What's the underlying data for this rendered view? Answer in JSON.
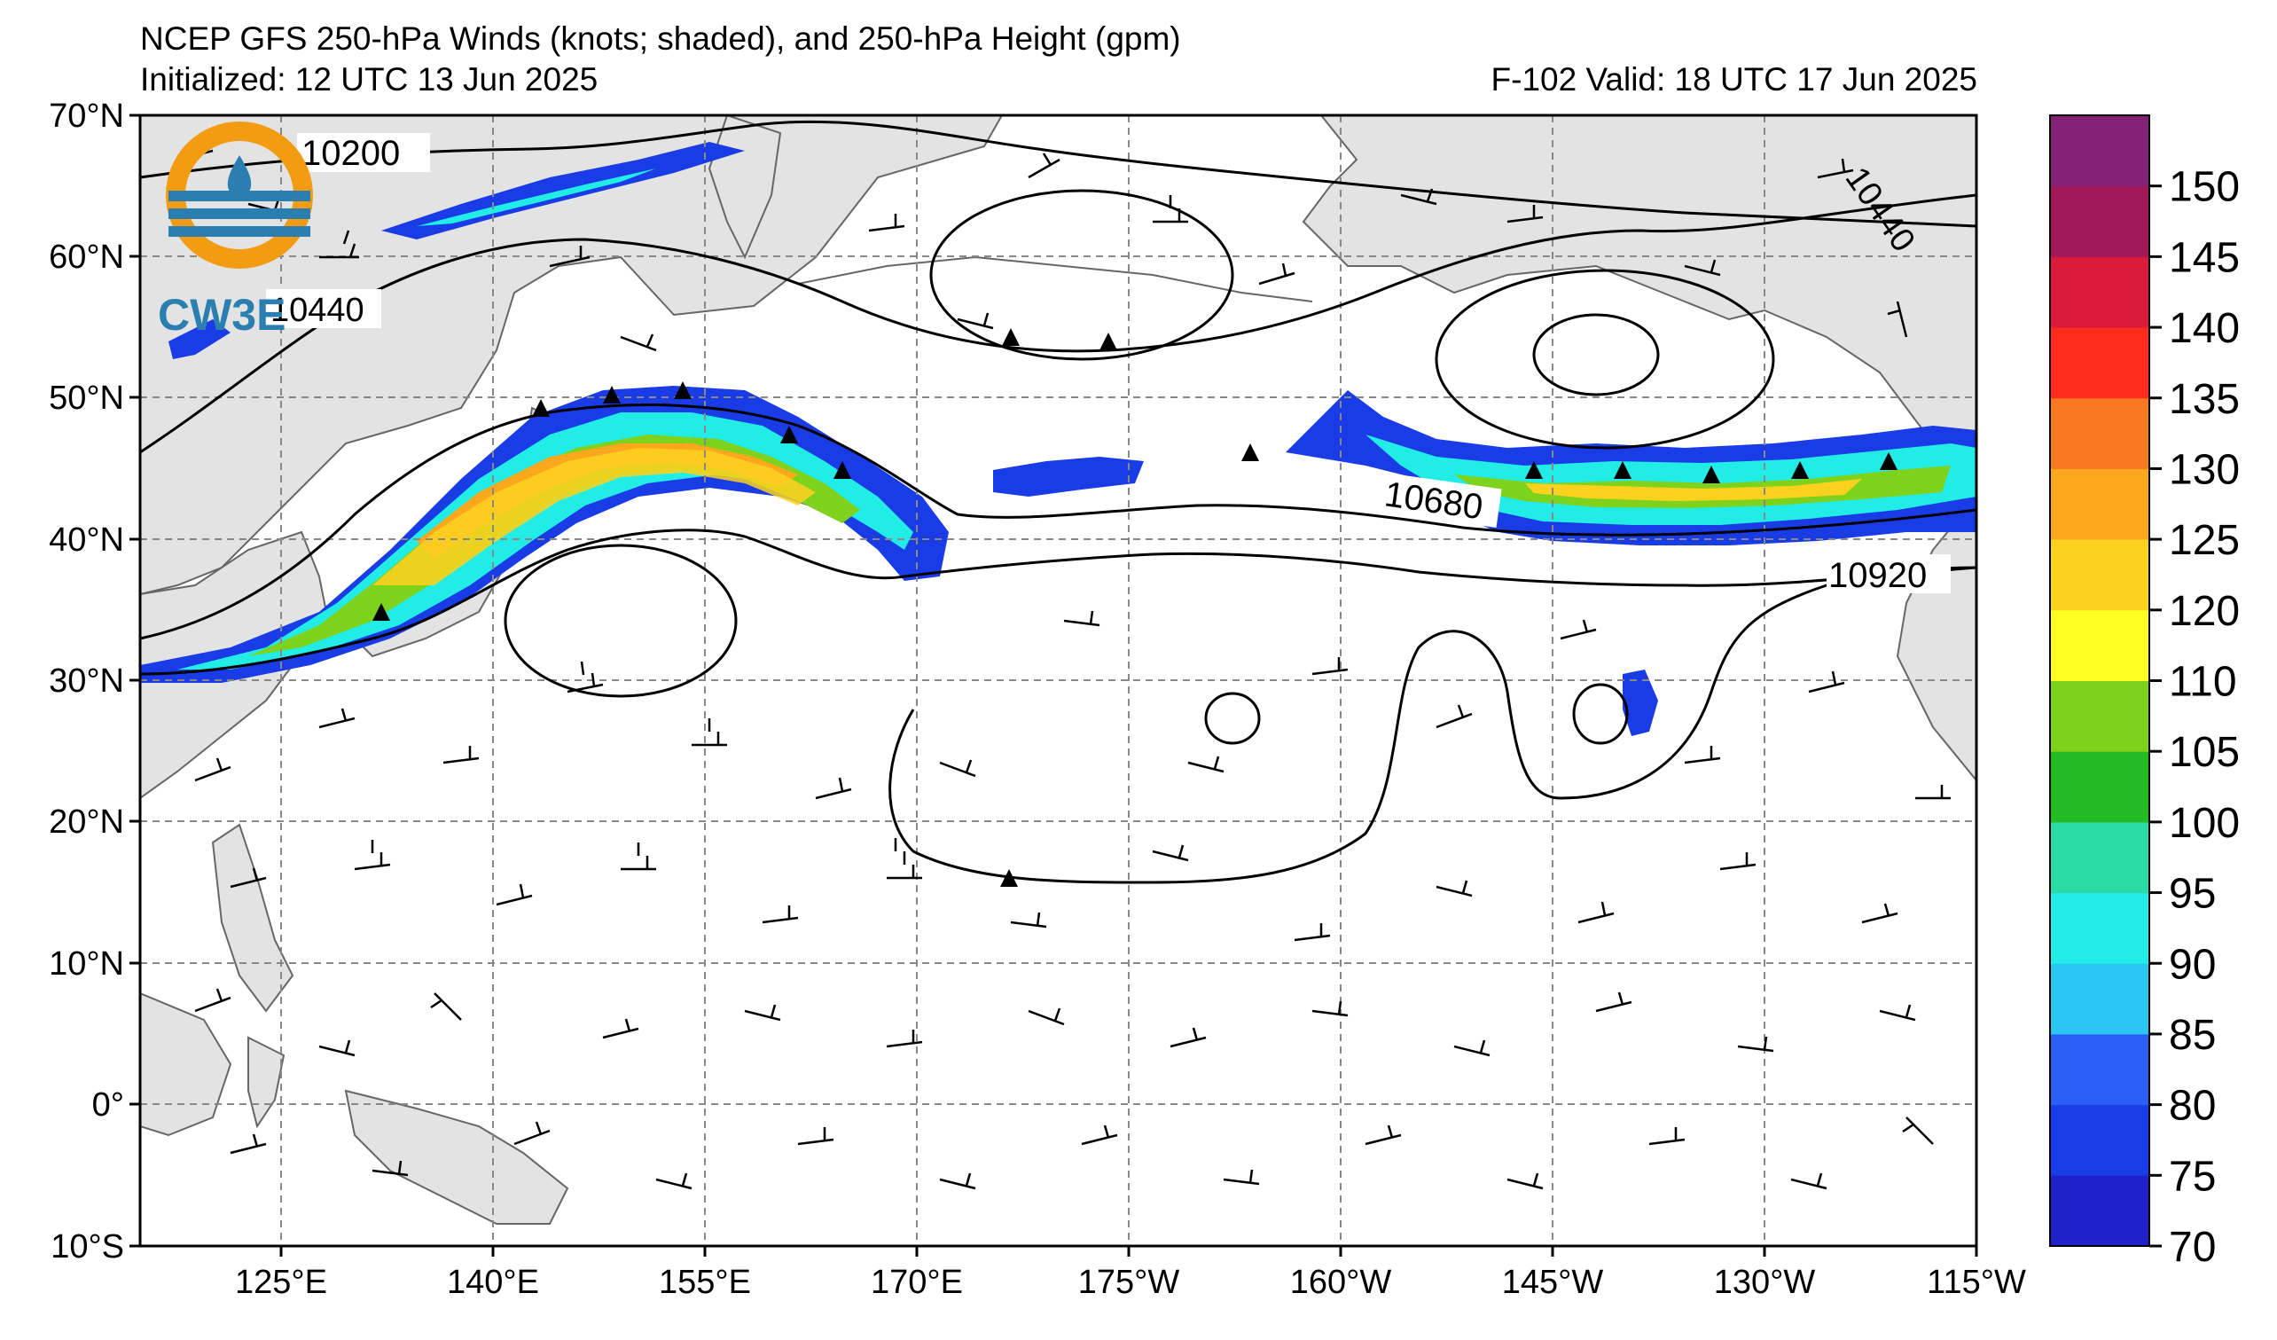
{
  "header": {
    "title": "NCEP GFS 250-hPa Winds (knots; shaded), and 250-hPa Height (gpm)",
    "initialized": "Initialized: 12 UTC 13 Jun 2025",
    "valid": "F-102  Valid: 18 UTC 17 Jun 2025"
  },
  "logo": {
    "text": "CW3E",
    "ring_colors": [
      "#f39c12",
      "#2a7fb0"
    ]
  },
  "axes": {
    "lat_labels": [
      "70°N",
      "60°N",
      "50°N",
      "40°N",
      "30°N",
      "20°N",
      "10°N",
      "0°",
      "10°S"
    ],
    "lon_labels": [
      "125°E",
      "140°E",
      "155°E",
      "170°E",
      "175°W",
      "160°W",
      "145°W",
      "130°W",
      "115°W"
    ]
  },
  "contour_labels": [
    {
      "text": "10200"
    },
    {
      "text": "10440"
    },
    {
      "text": "10440"
    },
    {
      "text": "10680"
    },
    {
      "text": "10920"
    }
  ],
  "colorbar": {
    "levels": [
      70,
      75,
      80,
      85,
      90,
      95,
      100,
      105,
      110,
      120,
      125,
      130,
      135,
      140,
      145,
      150,
      155
    ],
    "colors": [
      "#1f22c8",
      "#1a3ce6",
      "#2a5ff5",
      "#29c7f2",
      "#21ece6",
      "#2bdba6",
      "#22bb22",
      "#7fd21c",
      "#ffff22",
      "#fdd21f",
      "#fba81c",
      "#f97822",
      "#ff2b1c",
      "#d81c3a",
      "#a21858",
      "#862178"
    ],
    "tick_labels": [
      "70",
      "75",
      "80",
      "85",
      "90",
      "95",
      "100",
      "105",
      "110",
      "120",
      "125",
      "130",
      "135",
      "140",
      "145",
      "150"
    ]
  }
}
